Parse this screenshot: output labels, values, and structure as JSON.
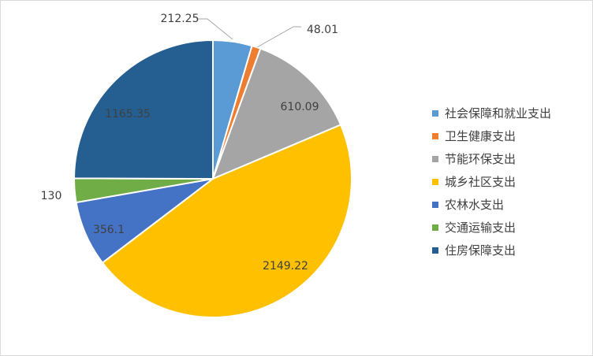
{
  "chart_data": {
    "type": "pie",
    "categories": [
      "社会保障和就业支出",
      "卫生健康支出",
      "节能环保支出",
      "城乡社区支出",
      "农林水支出",
      "交通运输支出",
      "住房保障支出"
    ],
    "values": [
      212.25,
      48.01,
      610.09,
      2149.22,
      356.1,
      130,
      1165.35
    ],
    "value_labels": [
      "212.25",
      "48.01",
      "610.09",
      "2149.22",
      "356.1",
      "130",
      "1165.35"
    ],
    "colors": [
      "#5b9bd5",
      "#ed7d31",
      "#a5a5a5",
      "#ffc000",
      "#4472c4",
      "#70ad47",
      "#255e91"
    ],
    "legend_position": "right",
    "start_angle": "12 o'clock, clockwise"
  }
}
